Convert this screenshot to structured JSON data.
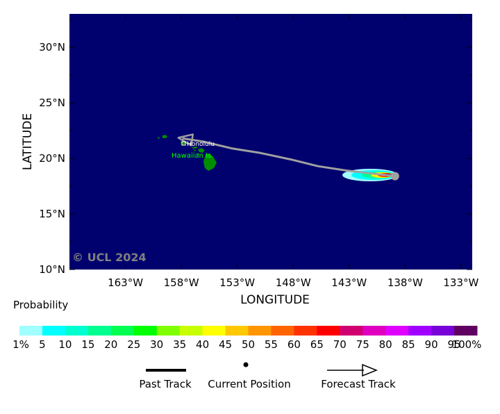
{
  "map": {
    "x_axis_title": "LONGITUDE",
    "y_axis_title": "LATITUDE",
    "lon_range": [
      -168,
      -132
    ],
    "lat_range": [
      10,
      33
    ],
    "lon_ticks": [
      {
        "value": -163,
        "label": "163°W"
      },
      {
        "value": -158,
        "label": "158°W"
      },
      {
        "value": -153,
        "label": "153°W"
      },
      {
        "value": -148,
        "label": "148°W"
      },
      {
        "value": -143,
        "label": "143°W"
      },
      {
        "value": -138,
        "label": "138°W"
      },
      {
        "value": -133,
        "label": "133°W"
      }
    ],
    "lat_ticks": [
      {
        "value": 30,
        "label": "30°N"
      },
      {
        "value": 25,
        "label": "25°N"
      },
      {
        "value": 20,
        "label": "20°N"
      },
      {
        "value": 15,
        "label": "15°N"
      },
      {
        "value": 10,
        "label": "10°N"
      }
    ],
    "ocean_color": "#00006e",
    "land_color": "#008c00",
    "track_color": "#a0a0a0",
    "city_label": "Honolulu",
    "region_label": "Hawaiian Is.",
    "copyright": "© UCL 2024",
    "current_position": {
      "lon": -138.9,
      "lat": 18.4
    },
    "forecast_track": [
      {
        "lon": -138.9,
        "lat": 18.4
      },
      {
        "lon": -143.2,
        "lat": 18.9
      },
      {
        "lon": -145.8,
        "lat": 19.3
      },
      {
        "lon": -148.2,
        "lat": 19.9
      },
      {
        "lon": -151.0,
        "lat": 20.5
      },
      {
        "lon": -153.5,
        "lat": 20.9
      },
      {
        "lon": -156.0,
        "lat": 21.5
      },
      {
        "lon": -157.9,
        "lat": 21.8
      }
    ]
  },
  "legend": {
    "title": "Probability",
    "bins": [
      {
        "label": "1%",
        "color": "#a0ffff"
      },
      {
        "label": "5",
        "color": "#00ffff"
      },
      {
        "label": "10",
        "color": "#00ffd0"
      },
      {
        "label": "15",
        "color": "#00ff90"
      },
      {
        "label": "20",
        "color": "#00ff50"
      },
      {
        "label": "25",
        "color": "#00ff00"
      },
      {
        "label": "30",
        "color": "#80ff00"
      },
      {
        "label": "35",
        "color": "#c8ff00"
      },
      {
        "label": "40",
        "color": "#ffff00"
      },
      {
        "label": "45",
        "color": "#ffc800"
      },
      {
        "label": "50",
        "color": "#ff9600"
      },
      {
        "label": "55",
        "color": "#ff6400"
      },
      {
        "label": "60",
        "color": "#ff3200"
      },
      {
        "label": "65",
        "color": "#ff0000"
      },
      {
        "label": "70",
        "color": "#d00070"
      },
      {
        "label": "75",
        "color": "#e000c0"
      },
      {
        "label": "80",
        "color": "#e000ff"
      },
      {
        "label": "85",
        "color": "#a000ff"
      },
      {
        "label": "90",
        "color": "#7800d8"
      },
      {
        "label": "95",
        "color": "#6000a0"
      },
      {
        "label": "100%",
        "color": "#600060"
      }
    ],
    "track_keys": [
      {
        "label": "Past Track",
        "icon": "solid-line"
      },
      {
        "label": "Current Position",
        "icon": "dot"
      },
      {
        "label": "Forecast Track",
        "icon": "arrow"
      }
    ]
  }
}
